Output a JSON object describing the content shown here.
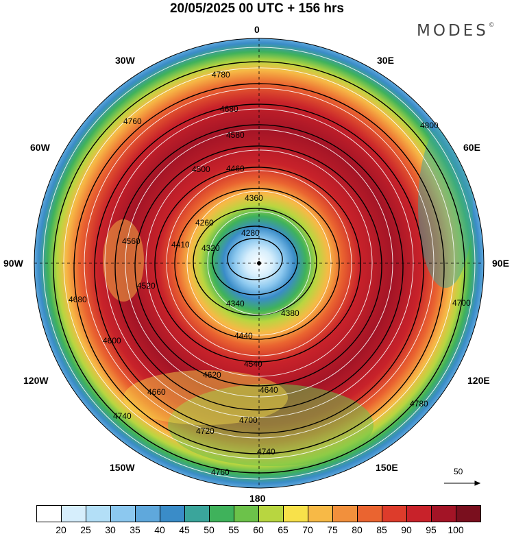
{
  "title": "20/05/2025  00 UTC  + 156 hrs",
  "brand": "MODES",
  "brand_mark": "©",
  "longitude_labels": {
    "n": "0",
    "s": "180",
    "w90": "90W",
    "e90": "90E",
    "w30": "30W",
    "e30": "30E",
    "w60": "60W",
    "e60": "60E",
    "w120": "120W",
    "e120": "120E",
    "w150": "150W",
    "e150": "150E"
  },
  "contour_labels": [
    "4780",
    "4760",
    "4680",
    "4580",
    "4460",
    "4360",
    "4280",
    "4260",
    "4320",
    "4340",
    "4380",
    "4440",
    "4540",
    "4640",
    "4700",
    "4720",
    "4740",
    "4760",
    "4800",
    "4700",
    "4680",
    "4600",
    "4500",
    "4520",
    "4410",
    "4560",
    "4620",
    "4660",
    "4740",
    "4780"
  ],
  "wind_reference": "50",
  "legend": {
    "ticks": [
      "20",
      "25",
      "30",
      "35",
      "40",
      "45",
      "50",
      "55",
      "60",
      "65",
      "70",
      "75",
      "80",
      "85",
      "90",
      "95",
      "100"
    ],
    "colors": [
      "#ffffff",
      "#d6eefc",
      "#b3dff7",
      "#8cc8ef",
      "#5fa8dc",
      "#3a8cc8",
      "#3aa59b",
      "#3fb25b",
      "#6cc24a",
      "#b8d640",
      "#f8e14a",
      "#f7b946",
      "#f2903c",
      "#ea6430",
      "#dd3c2b",
      "#c8222a",
      "#a31426",
      "#7a0f1e"
    ]
  },
  "colors": {
    "ring": [
      "#c8222a",
      "#dd3c2b",
      "#f2903c",
      "#f8e14a",
      "#6cc24a",
      "#3aa59b",
      "#5fa8dc"
    ]
  }
}
